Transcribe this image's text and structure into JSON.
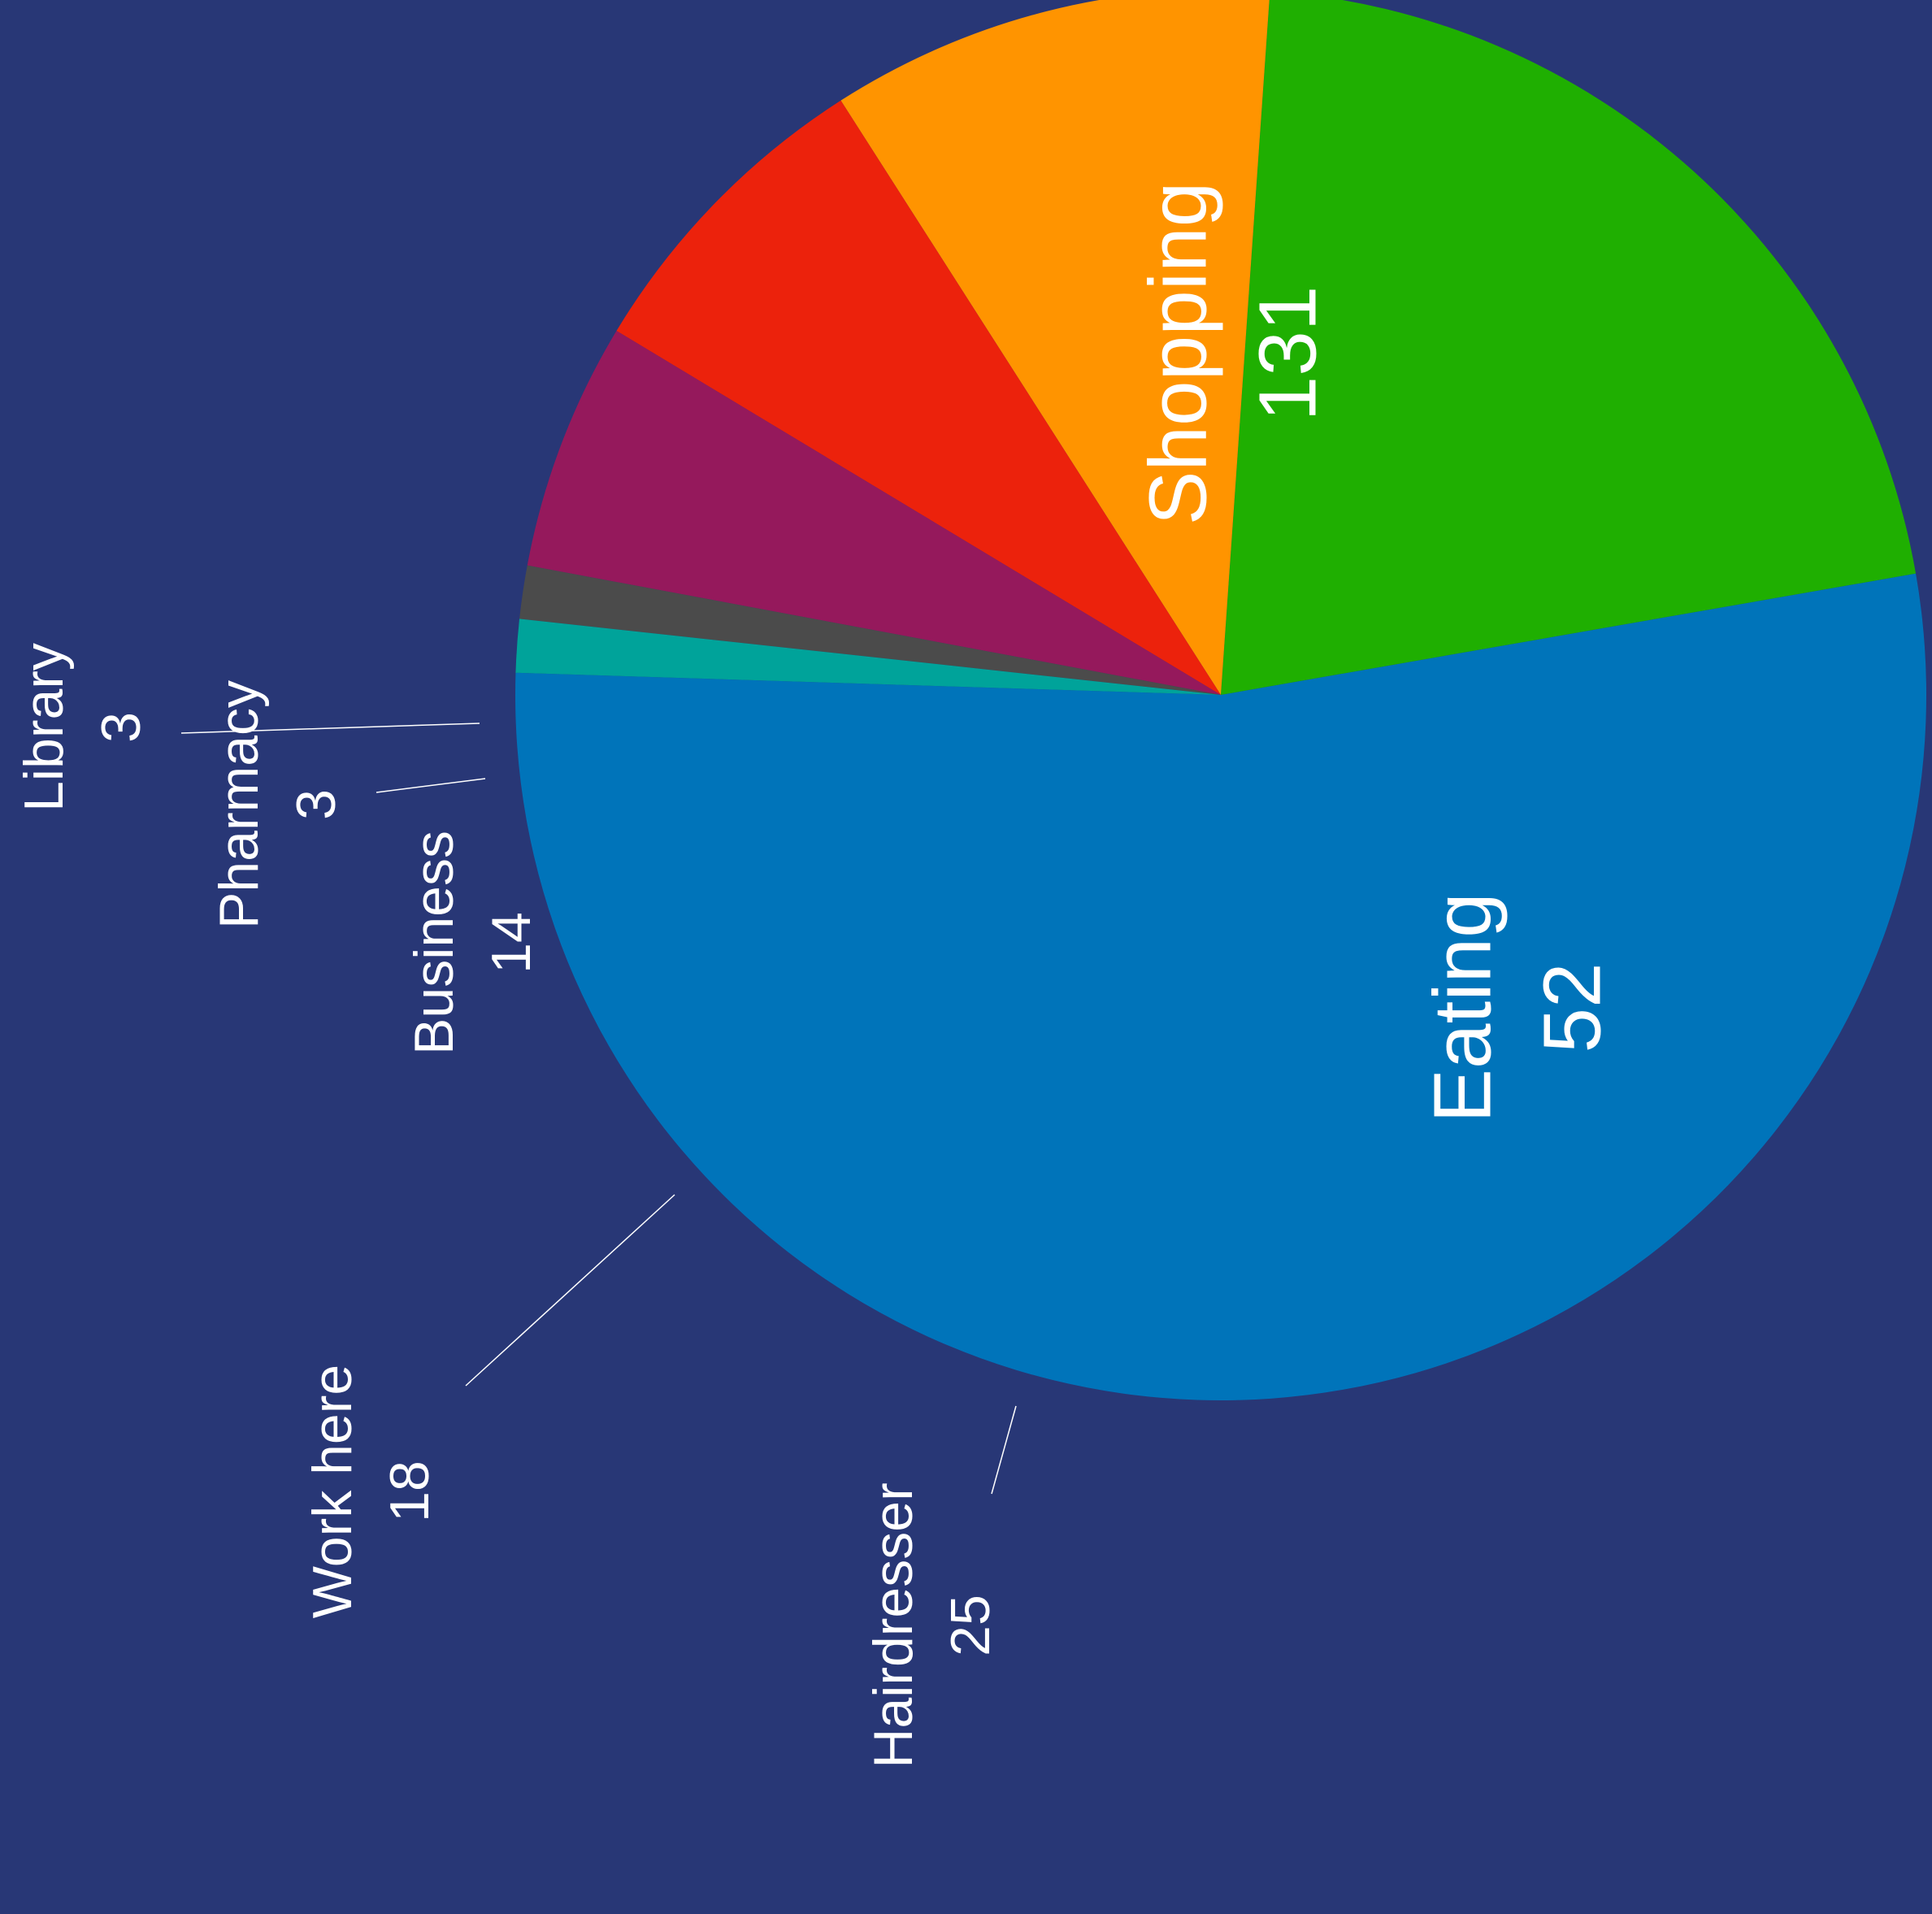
{
  "background": "#283776",
  "chart_data": {
    "type": "pie",
    "title": "",
    "orientation": "rotated 90 degrees counter-clockwise",
    "slices": [
      {
        "label": "Shopping",
        "value": 131,
        "color": "#0074BA",
        "label_placement": "inside"
      },
      {
        "label": "Eating",
        "value": 52,
        "color": "#1FAF01",
        "label_placement": "inside"
      },
      {
        "label": "Hairdresser",
        "value": 25,
        "color": "#FF9400",
        "label_placement": "outside"
      },
      {
        "label": "Work here",
        "value": 18,
        "color": "#EC220C",
        "label_placement": "outside"
      },
      {
        "label": "Business",
        "value": 14,
        "color": "#95195C",
        "label_placement": "outside"
      },
      {
        "label": "Pharmacy",
        "value": 3,
        "color": "#4B4B4B",
        "label_placement": "outside"
      },
      {
        "label": "Library",
        "value": 3,
        "color": "#00A39A",
        "label_placement": "outside"
      }
    ],
    "leader_line_color": "#ffffff"
  }
}
